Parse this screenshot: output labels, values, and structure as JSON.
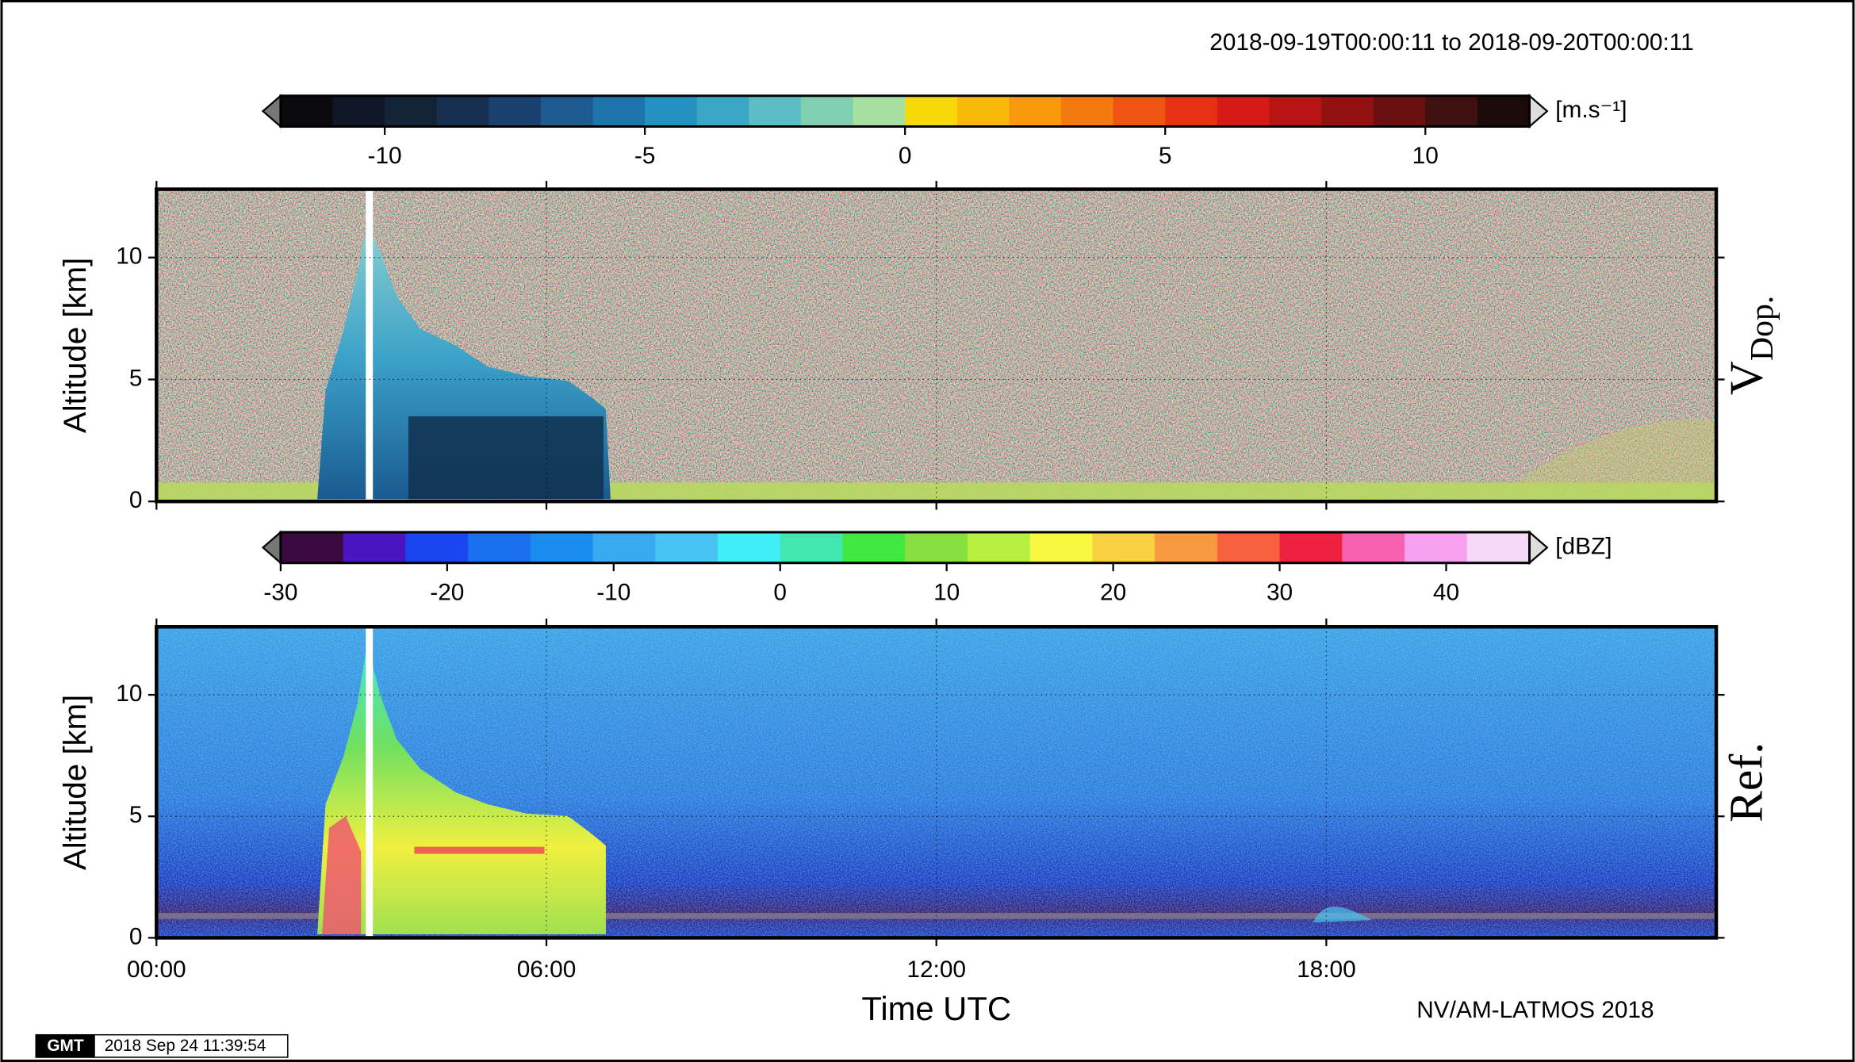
{
  "header": {
    "period": "2018-09-19T00:00:11 to 2018-09-20T00:00:11"
  },
  "chart_data": [
    {
      "type": "heatmap",
      "title": "V",
      "title_subscript": "Dop.",
      "ylabel": "Altitude [km]",
      "ylim": [
        0,
        12.8
      ],
      "yticks": [
        0,
        5,
        10
      ],
      "xlim": [
        0,
        24
      ],
      "xticks": [
        {
          "value": 0,
          "label": "00:00"
        },
        {
          "value": 6,
          "label": "06:00"
        },
        {
          "value": 12,
          "label": "12:00"
        },
        {
          "value": 18,
          "label": "18:00"
        }
      ],
      "grid": true,
      "colorbar": {
        "unit": "[m.s⁻¹]",
        "lim": [
          -12,
          12
        ],
        "ticks": [
          -10,
          -5,
          0,
          5,
          10
        ],
        "colors": [
          "#0a0a0f",
          "#101828",
          "#142338",
          "#173050",
          "#1a4070",
          "#1c5a90",
          "#1f75ab",
          "#2591c0",
          "#3aa7c9",
          "#5cbdc4",
          "#80cfb0",
          "#a5e0a0",
          "#f7d90a",
          "#f9b90a",
          "#f99a0c",
          "#f47a10",
          "#ee5514",
          "#e83014",
          "#d81a14",
          "#b81414",
          "#921212",
          "#6a1010",
          "#401010",
          "#1a0a0a"
        ]
      }
    },
    {
      "type": "heatmap",
      "title": "Ref.",
      "ylabel": "Altitude [km]",
      "xlabel": "Time UTC",
      "ylim": [
        0,
        12.8
      ],
      "yticks": [
        0,
        5,
        10
      ],
      "xlim": [
        0,
        24
      ],
      "xticks": [
        {
          "value": 0,
          "label": "00:00"
        },
        {
          "value": 6,
          "label": "06:00"
        },
        {
          "value": 12,
          "label": "12:00"
        },
        {
          "value": 18,
          "label": "18:00"
        }
      ],
      "grid": true,
      "colorbar": {
        "unit": "[dBZ]",
        "lim": [
          -30,
          45
        ],
        "ticks": [
          -30,
          -20,
          -10,
          0,
          10,
          20,
          30,
          40
        ],
        "colors": [
          "#3a0a40",
          "#4a14c0",
          "#1a46f0",
          "#1a6ef0",
          "#1a8cf0",
          "#3aaaf0",
          "#48c4f4",
          "#40eef8",
          "#40e8b0",
          "#40e840",
          "#88e040",
          "#b8f040",
          "#f8f840",
          "#f8d040",
          "#f89840",
          "#f86040",
          "#f02040",
          "#f860b0",
          "#f8a0f0",
          "#f8d8f8"
        ]
      }
    }
  ],
  "footer": {
    "credit": "NV/AM-LATMOS 2018",
    "stamp_logo": "GMT",
    "stamp": "2018 Sep 24 11:39:54"
  }
}
